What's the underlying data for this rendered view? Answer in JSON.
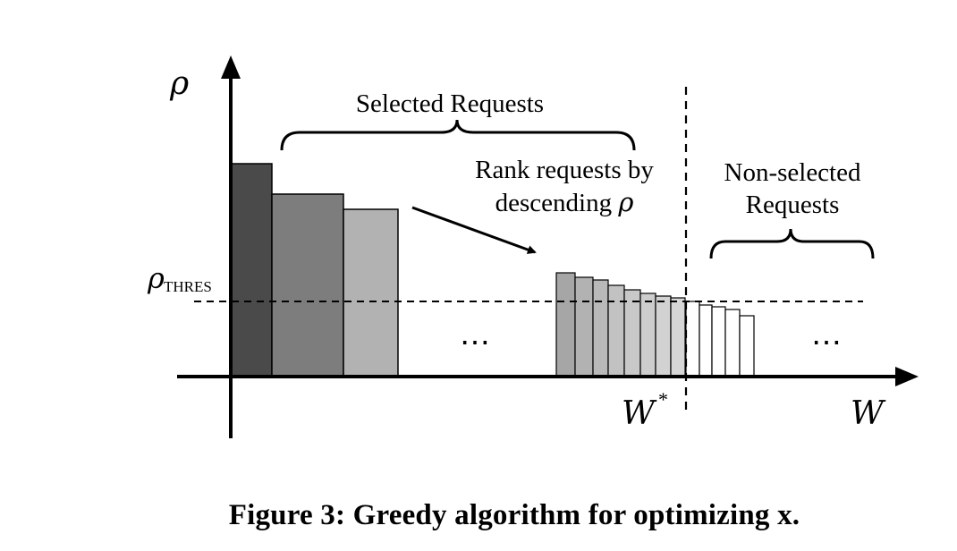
{
  "diagram": {
    "y_axis_label": "ρ",
    "x_axis_label": "W",
    "threshold_label": {
      "symbol": "ρ",
      "subscript": "THRES"
    },
    "w_star_label": {
      "symbol": "W",
      "superscript": "*"
    },
    "selected_label": "Selected Requests",
    "rank_note": {
      "line1": "Rank requests by",
      "line2_text": "descending ",
      "line2_symbol": "ρ"
    },
    "non_selected_label": {
      "line1": "Non-selected",
      "line2": "Requests"
    },
    "ellipsis": "⋯",
    "colors": {
      "bar_darkest": "#4a4a4a",
      "bar_dark": "#7d7d7d",
      "bar_mid": "#b2b2b2",
      "bar_small_1": "#a6a6a6",
      "bar_small_2": "#b9b9b9",
      "bar_small_3": "#cdcdcd",
      "bar_unselected": "#ffffff",
      "stroke": "#000000"
    }
  },
  "caption": "Figure 3: Greedy algorithm for optimizing x."
}
